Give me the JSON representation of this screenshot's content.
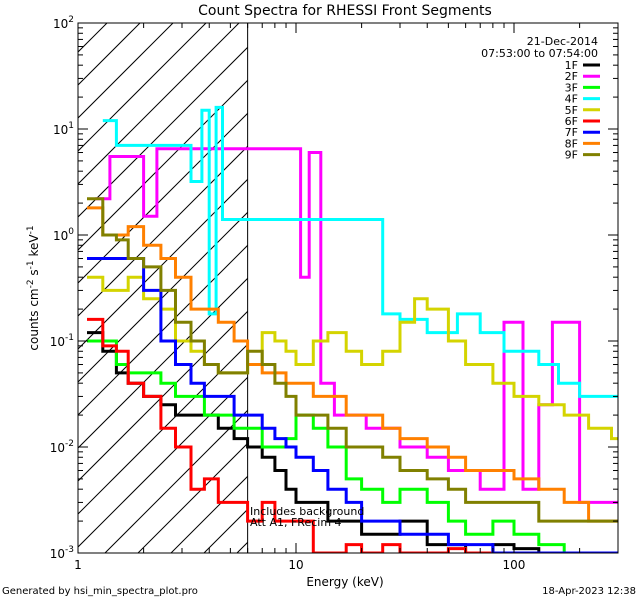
{
  "chart_data": {
    "type": "line",
    "title": "Count Spectra for RHESSI Front Segments",
    "xlabel": "Energy (keV)",
    "ylabel": "counts cm",
    "ylabel_units": {
      "exp1": "-2",
      "mid": " s",
      "exp2": "-1",
      "tail": " keV",
      "exp3": "-1"
    },
    "xscale": "log",
    "yscale": "log",
    "xlim": [
      1,
      300
    ],
    "ylim": [
      0.001,
      100
    ],
    "x_ticks": [
      {
        "value": 1,
        "label": "1"
      },
      {
        "value": 10,
        "label": "10"
      },
      {
        "value": 100,
        "label": "100"
      }
    ],
    "y_ticks": [
      {
        "value": 0.001,
        "base": "10",
        "exp": "-3"
      },
      {
        "value": 0.01,
        "base": "10",
        "exp": "-2"
      },
      {
        "value": 0.1,
        "base": "10",
        "exp": "-1"
      },
      {
        "value": 1,
        "base": "10",
        "exp": "0"
      },
      {
        "value": 10,
        "base": "10",
        "exp": "1"
      },
      {
        "value": 100,
        "base": "10",
        "exp": "2"
      }
    ],
    "shaded_region": {
      "x_from": 1,
      "x_to": 6,
      "pattern": "diagonal-hatch"
    },
    "date": "21-Dec-2014",
    "time_range": "07:53:00 to 07:54:00",
    "annotation_lines": [
      "Includes background",
      "Att A1, FRecim 4"
    ],
    "series": [
      {
        "name": "1F",
        "color": "#000000",
        "x": [
          1.1,
          1.3,
          1.5,
          1.7,
          2.0,
          2.4,
          2.8,
          3.3,
          3.8,
          4.4,
          5.2,
          6.0,
          7,
          8,
          9,
          10,
          12,
          14,
          17,
          20,
          25,
          30,
          40,
          50,
          60,
          80,
          100,
          130,
          170,
          220,
          280
        ],
        "values": [
          0.12,
          0.08,
          0.05,
          0.04,
          0.03,
          0.025,
          0.02,
          0.02,
          0.02,
          0.015,
          0.012,
          0.01,
          0.008,
          0.006,
          0.004,
          0.003,
          0.003,
          0.002,
          0.002,
          0.0015,
          0.0015,
          0.002,
          0.0012,
          0.0012,
          0.001,
          0.0012,
          0.0011,
          0.001,
          0.001,
          0.001,
          0.001
        ]
      },
      {
        "name": "2F",
        "color": "#ff00ff",
        "x": [
          1.2,
          1.4,
          1.7,
          2.0,
          2.3,
          10.5,
          11.5,
          13,
          15,
          18,
          21,
          25,
          30,
          40,
          50,
          70,
          90,
          110,
          130,
          150,
          200
        ],
        "values": [
          2.2,
          5.5,
          5.5,
          1.5,
          6.5,
          0.4,
          6.0,
          0.04,
          0.02,
          0.02,
          0.015,
          0.015,
          0.01,
          0.008,
          0.006,
          0.004,
          0.15,
          0.004,
          0.025,
          0.15,
          0.003
        ]
      },
      {
        "name": "3F",
        "color": "#00ff00",
        "x": [
          1.1,
          1.3,
          1.5,
          1.7,
          2.0,
          2.4,
          2.8,
          3.3,
          3.8,
          4.4,
          5.2,
          6.0,
          7,
          8,
          9,
          10,
          12,
          14,
          17,
          20,
          25,
          30,
          40,
          50,
          60,
          80,
          100,
          130,
          170,
          220,
          280
        ],
        "values": [
          0.1,
          0.1,
          0.06,
          0.05,
          0.05,
          0.04,
          0.03,
          0.03,
          0.02,
          0.02,
          0.015,
          0.015,
          0.01,
          0.01,
          0.012,
          0.02,
          0.015,
          0.01,
          0.005,
          0.004,
          0.003,
          0.004,
          0.003,
          0.002,
          0.0015,
          0.002,
          0.0015,
          0.0012,
          0.001,
          0.001,
          0.001
        ]
      },
      {
        "name": "4F",
        "color": "#00ffff",
        "x": [
          1.3,
          1.5,
          3.3,
          3.7,
          4.0,
          4.3,
          4.6,
          25,
          30,
          40,
          55,
          70,
          90,
          110,
          130,
          160,
          200,
          250
        ],
        "values": [
          12,
          7,
          3.2,
          15,
          0.18,
          16,
          1.4,
          0.18,
          0.16,
          0.12,
          0.18,
          0.12,
          0.08,
          0.08,
          0.06,
          0.04,
          0.03,
          0.03
        ]
      },
      {
        "name": "5F",
        "color": "#d4d400",
        "x": [
          1.1,
          1.3,
          1.5,
          1.7,
          2.0,
          2.4,
          2.8,
          3.3,
          3.8,
          4.4,
          5.2,
          6.0,
          7,
          8,
          9,
          10,
          12,
          14,
          17,
          20,
          25,
          30,
          35,
          40,
          50,
          60,
          80,
          100,
          130,
          170,
          220,
          280
        ],
        "values": [
          0.4,
          0.3,
          0.3,
          0.4,
          0.25,
          0.2,
          0.1,
          0.08,
          0.06,
          0.05,
          0.05,
          0.06,
          0.12,
          0.1,
          0.08,
          0.06,
          0.1,
          0.12,
          0.08,
          0.06,
          0.08,
          0.15,
          0.25,
          0.2,
          0.1,
          0.06,
          0.04,
          0.03,
          0.025,
          0.02,
          0.015,
          0.012
        ]
      },
      {
        "name": "6F",
        "color": "#ff0000",
        "x": [
          1.1,
          1.3,
          1.5,
          1.7,
          2.0,
          2.4,
          2.8,
          3.3,
          3.8,
          4.4,
          5.2,
          6.0,
          7,
          8,
          9,
          10,
          12,
          14,
          17,
          20,
          25,
          30,
          40,
          50,
          60,
          80,
          100,
          130,
          170,
          220,
          280
        ],
        "values": [
          0.16,
          0.09,
          0.08,
          0.04,
          0.03,
          0.015,
          0.01,
          0.004,
          0.005,
          0.003,
          0.003,
          0.002,
          0.003,
          0.002,
          0.002,
          0.002,
          0.001,
          0.001,
          0.0012,
          0.001,
          0.0012,
          0.001,
          0.001,
          0.0011,
          0.001,
          0.001,
          0.001,
          0.001,
          0.001,
          0.001,
          0.001
        ]
      },
      {
        "name": "7F",
        "color": "#0000ff",
        "x": [
          1.1,
          1.3,
          1.5,
          1.7,
          2.0,
          2.4,
          2.8,
          3.3,
          3.8,
          4.4,
          5.2,
          6.0,
          7,
          8,
          9,
          10,
          12,
          14,
          17,
          20,
          25,
          30,
          40,
          50,
          60,
          80,
          100,
          130,
          170,
          220,
          280
        ],
        "values": [
          0.6,
          0.6,
          0.6,
          0.6,
          0.3,
          0.1,
          0.06,
          0.04,
          0.03,
          0.03,
          0.02,
          0.02,
          0.015,
          0.012,
          0.01,
          0.008,
          0.006,
          0.004,
          0.003,
          0.002,
          0.002,
          0.0015,
          0.0015,
          0.0012,
          0.0012,
          0.001,
          0.001,
          0.001,
          0.001,
          0.001,
          0.001
        ]
      },
      {
        "name": "8F",
        "color": "#ff8000",
        "x": [
          1.1,
          1.3,
          1.5,
          1.7,
          2.0,
          2.4,
          2.8,
          3.3,
          3.8,
          4.4,
          5.2,
          6.0,
          7,
          8,
          9,
          10,
          12,
          14,
          17,
          20,
          25,
          30,
          40,
          50,
          60,
          80,
          100,
          130,
          170,
          220,
          280
        ],
        "values": [
          1.8,
          1.0,
          1.0,
          1.2,
          0.8,
          0.6,
          0.4,
          0.2,
          0.2,
          0.15,
          0.1,
          0.06,
          0.05,
          0.05,
          0.04,
          0.04,
          0.03,
          0.03,
          0.02,
          0.02,
          0.015,
          0.012,
          0.01,
          0.008,
          0.006,
          0.006,
          0.005,
          0.004,
          0.003,
          0.002,
          0.002
        ]
      },
      {
        "name": "9F",
        "color": "#808000",
        "x": [
          1.1,
          1.3,
          1.5,
          1.7,
          2.0,
          2.4,
          2.8,
          3.3,
          3.8,
          4.4,
          5.2,
          6.0,
          7,
          8,
          9,
          10,
          12,
          14,
          17,
          20,
          25,
          30,
          40,
          50,
          60,
          80,
          100,
          130,
          170,
          220,
          280
        ],
        "values": [
          2.2,
          1.0,
          0.9,
          0.6,
          0.5,
          0.3,
          0.15,
          0.1,
          0.06,
          0.05,
          0.05,
          0.08,
          0.06,
          0.04,
          0.03,
          0.02,
          0.02,
          0.015,
          0.01,
          0.01,
          0.008,
          0.006,
          0.005,
          0.004,
          0.003,
          0.003,
          0.003,
          0.002,
          0.002,
          0.002,
          0.002
        ]
      }
    ]
  },
  "footer": {
    "generator": "Generated by hsi_min_spectra_plot.pro",
    "timestamp": "18-Apr-2023 12:38"
  }
}
